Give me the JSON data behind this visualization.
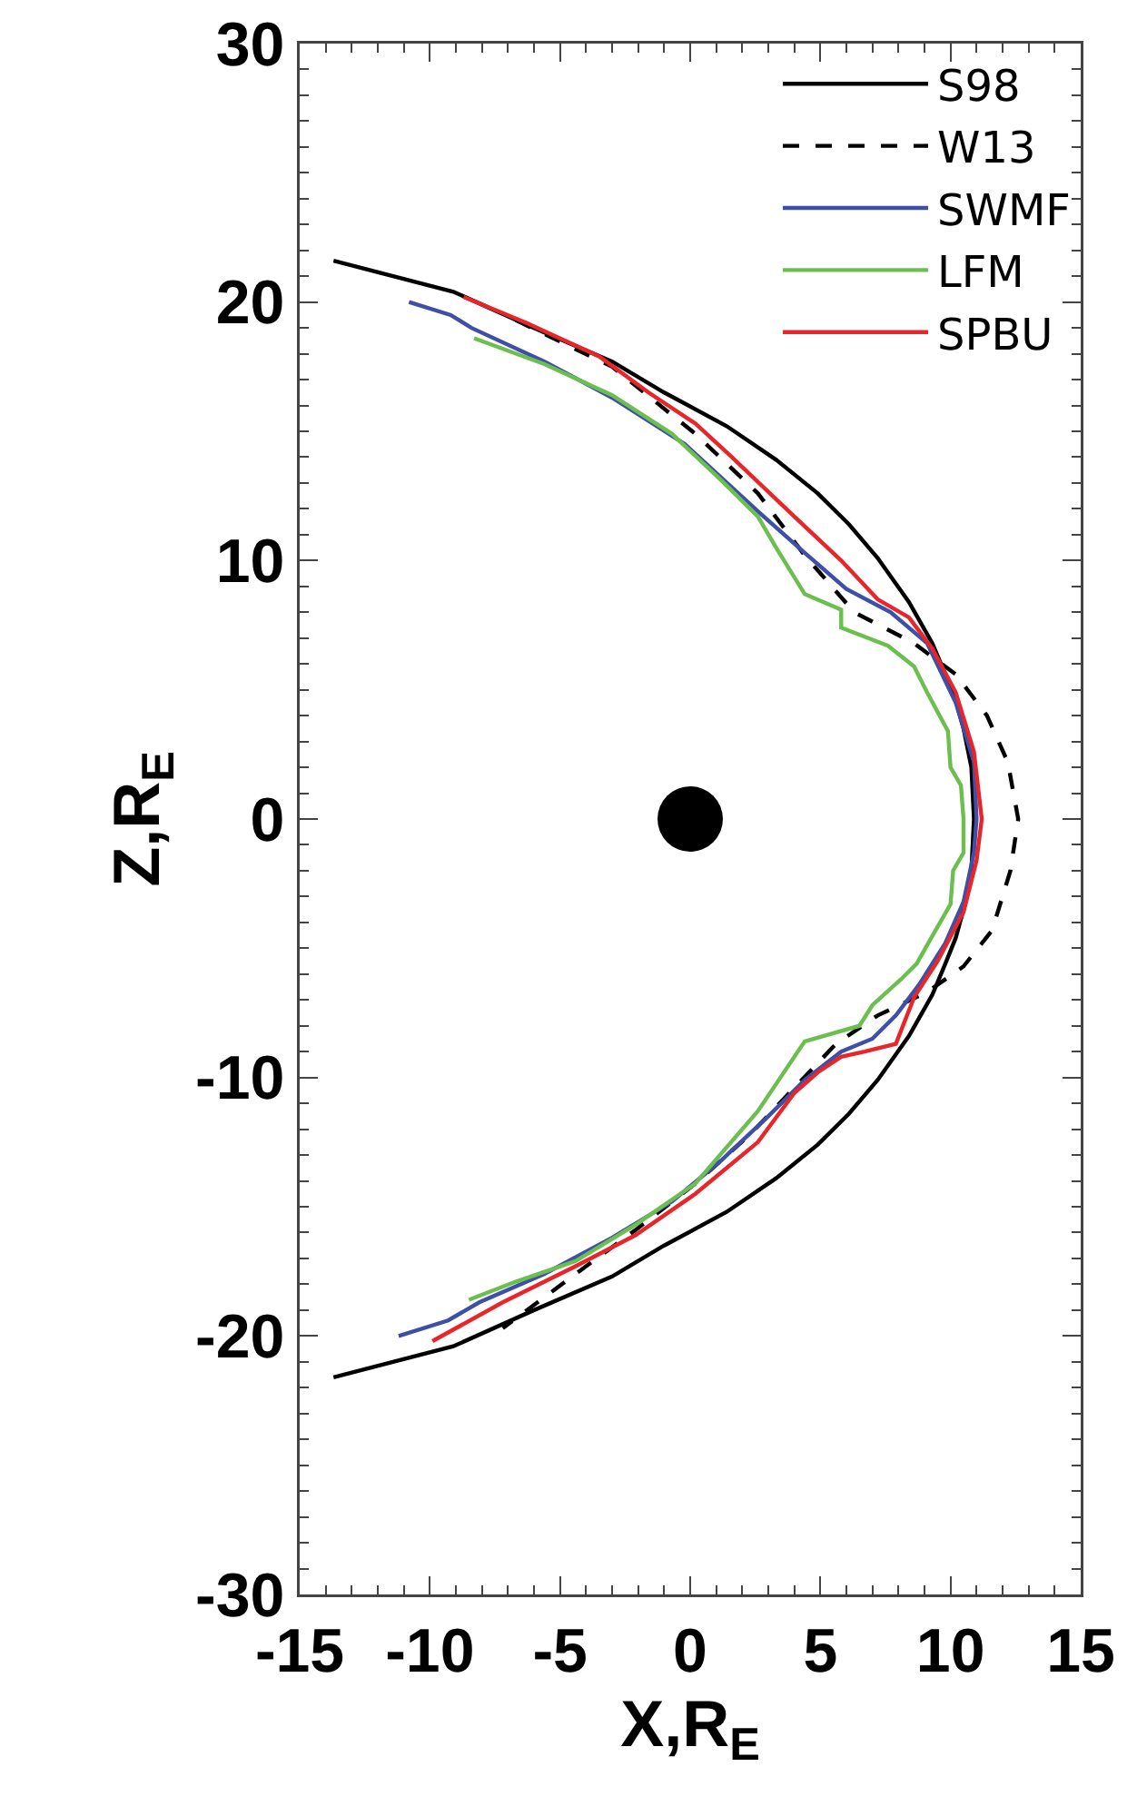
{
  "chart_data": {
    "type": "line",
    "xlabel": "X,R$_{E}$",
    "ylabel": "Z,R$_{E}$",
    "xlim": [
      -15,
      15
    ],
    "ylim": [
      -30,
      30
    ],
    "xticks": [
      -15,
      -10,
      -5,
      0,
      5,
      10,
      15
    ],
    "yticks": [
      -30,
      -20,
      -10,
      0,
      10,
      20,
      30
    ],
    "grid": false,
    "legend": "top right",
    "marker": "none",
    "series": [
      {
        "name": "S98",
        "color": "#000000",
        "line_style": "solid",
        "x": [
          -13.7,
          -9.1,
          -6.0,
          -3.0,
          -1.0,
          1.4,
          3.3,
          4.9,
          6.1,
          7.2,
          8.4,
          9.3,
          9.8,
          10.2,
          10.5,
          10.8,
          10.9,
          10.8,
          10.5,
          10.2,
          9.8,
          9.3,
          8.4,
          7.2,
          6.1,
          4.9,
          3.3,
          1.4,
          -1.0,
          -3.0,
          -6.0,
          -9.1,
          -13.7
        ],
        "values": [
          21.6,
          20.4,
          19.0,
          17.7,
          16.5,
          15.2,
          13.9,
          12.6,
          11.4,
          10.1,
          8.4,
          6.8,
          5.6,
          4.6,
          3.5,
          2.0,
          0,
          -2.0,
          -3.5,
          -4.6,
          -5.6,
          -6.8,
          -8.4,
          -10.1,
          -11.4,
          -12.6,
          -13.9,
          -15.2,
          -16.5,
          -17.7,
          -19.0,
          -20.4,
          -21.6
        ]
      },
      {
        "name": "W13",
        "color": "#000000",
        "line_style": "dashed",
        "x": [
          -6.7,
          -3.0,
          0.2,
          2.6,
          4.4,
          6.3,
          8.6,
          10.2,
          11.4,
          12.2,
          12.6,
          12.3,
          11.6,
          10.5,
          9.1,
          7.2,
          5.6,
          4.0,
          2.3,
          0.2,
          -2.1,
          -4.4,
          -7.2
        ],
        "values": [
          19.3,
          17.5,
          14.9,
          12.6,
          10.2,
          8.0,
          6.8,
          5.6,
          4.0,
          2.2,
          0,
          -2.0,
          -4.3,
          -5.7,
          -6.7,
          -7.6,
          -8.7,
          -10.4,
          -12.2,
          -14.1,
          -15.9,
          -17.6,
          -19.7
        ]
      },
      {
        "name": "SWMF",
        "color": "#3e4fa8",
        "line_style": "solid",
        "x": [
          -10.8,
          -9.2,
          -8.4,
          -5.6,
          -3.0,
          -0.2,
          2.6,
          4.4,
          6.0,
          7.7,
          9.1,
          10.2,
          10.9,
          11.0,
          10.9,
          10.5,
          9.8,
          8.8,
          7.9,
          7.0,
          5.8,
          4.4,
          3.0,
          1.2,
          -0.7,
          -3.0,
          -5.6,
          -8.1,
          -9.3,
          -11.2
        ],
        "values": [
          20.0,
          19.5,
          19.0,
          17.7,
          16.3,
          14.5,
          11.9,
          10.3,
          8.9,
          8.0,
          6.8,
          4.5,
          2.2,
          0,
          -1.3,
          -3.2,
          -4.8,
          -6.4,
          -7.6,
          -8.5,
          -9.0,
          -10.1,
          -11.5,
          -13.2,
          -14.8,
          -16.2,
          -17.6,
          -18.7,
          -19.4,
          -20.0
        ]
      },
      {
        "name": "LFM",
        "color": "#6cbf4f",
        "line_style": "solid",
        "x": [
          -8.3,
          -5.6,
          -3.0,
          -0.7,
          1.2,
          2.6,
          3.3,
          4.4,
          5.8,
          5.8,
          7.6,
          8.6,
          9.1,
          9.9,
          10.0,
          10.4,
          10.5,
          10.5,
          10.1,
          10.0,
          9.2,
          8.7,
          8.1,
          7.0,
          6.5,
          4.4,
          2.6,
          0.2,
          -2.1,
          -4.4,
          -6.7,
          -8.5
        ],
        "values": [
          18.6,
          17.6,
          16.4,
          14.9,
          13.1,
          11.7,
          10.5,
          8.7,
          8.1,
          7.4,
          6.7,
          5.9,
          4.9,
          3.4,
          2.0,
          1.3,
          0,
          -1.3,
          -2.0,
          -3.3,
          -4.7,
          -5.6,
          -6.2,
          -7.2,
          -8.0,
          -8.6,
          -11.3,
          -14.1,
          -15.7,
          -17.1,
          -17.9,
          -18.6
        ]
      },
      {
        "name": "SPBU",
        "color": "#e8262a",
        "line_style": "solid",
        "x": [
          -8.7,
          -6.3,
          -3.5,
          -1.6,
          0.2,
          1.6,
          4.0,
          5.8,
          7.2,
          8.4,
          9.3,
          10.2,
          10.9,
          11.2,
          11.0,
          10.5,
          9.5,
          8.6,
          7.9,
          6.7,
          5.8,
          4.9,
          4.0,
          2.6,
          0.2,
          -2.1,
          -4.4,
          -7.2,
          -9.9
        ],
        "values": [
          20.2,
          19.2,
          17.9,
          16.5,
          15.3,
          14.0,
          11.7,
          10.0,
          8.5,
          7.8,
          6.6,
          4.9,
          2.6,
          0,
          -1.6,
          -3.6,
          -5.5,
          -6.9,
          -8.7,
          -9.0,
          -9.2,
          -9.8,
          -10.6,
          -12.5,
          -14.5,
          -16.1,
          -17.3,
          -18.7,
          -20.2
        ]
      },
      {
        "type": "scatter",
        "marker": "circle",
        "color": "#000000",
        "x": [
          0
        ],
        "values": [
          0
        ]
      }
    ]
  }
}
